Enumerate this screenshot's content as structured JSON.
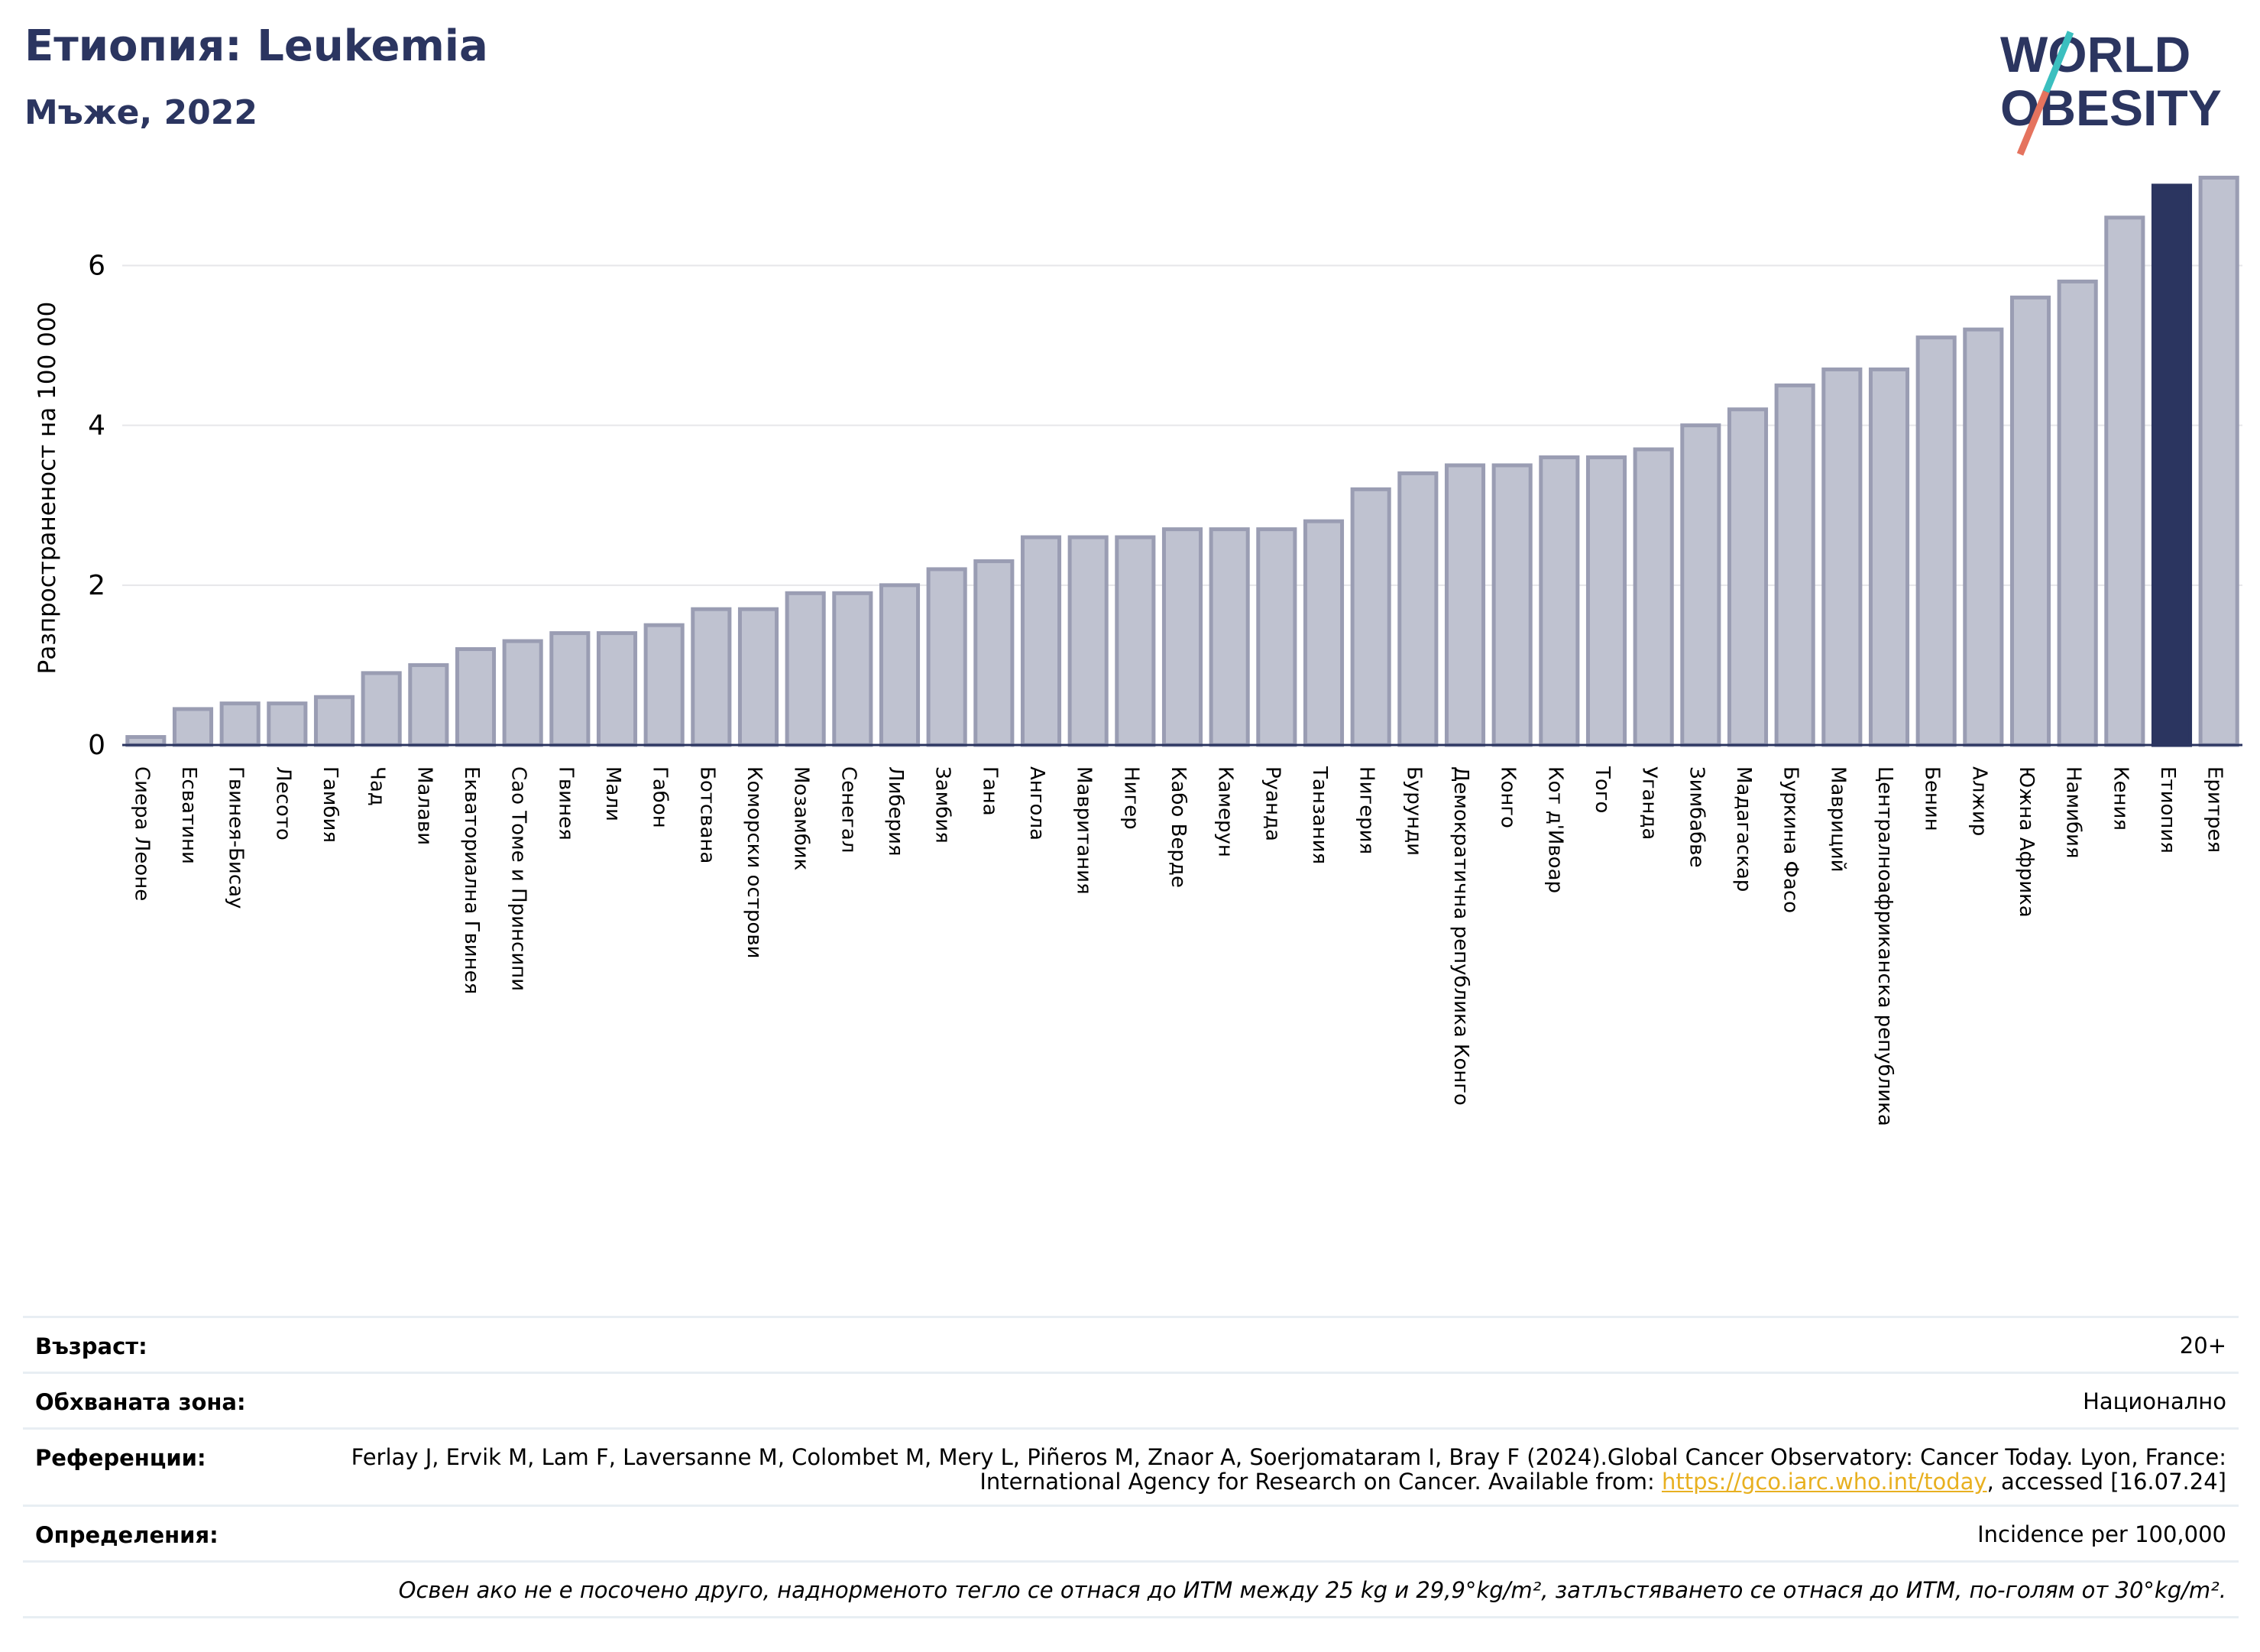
{
  "header": {
    "title": "Етиопия: Leukemia",
    "subtitle": "Мъже, 2022"
  },
  "logo": {
    "line1": "WORLD",
    "line2": "OBESITY",
    "colors": {
      "text": "#2b3560",
      "slash_teal": "#3bbfbf",
      "slash_coral": "#e5735e"
    }
  },
  "chart_data": {
    "type": "bar",
    "ylabel": "Разпространеност  на 100 000",
    "ylim": [
      0,
      7.2
    ],
    "yticks": [
      0,
      2,
      4,
      6
    ],
    "grid": true,
    "highlight": "Етиопия",
    "colors": {
      "bar": "#bfc2d0",
      "bar_edge": "#9a9db3",
      "highlight": "#2b3560",
      "grid": "#e6e6ea"
    },
    "categories": [
      "Сиера Леоне",
      "Есватини",
      "Гвинея-Бисау",
      "Лесото",
      "Гамбия",
      "Чад",
      "Малави",
      "Екваториална Гвинея",
      "Сао Томе и Принсипи",
      "Гвинея",
      "Мали",
      "Габон",
      "Ботсвана",
      "Коморски острови",
      "Мозамбик",
      "Сенегал",
      "Либерия",
      "Замбия",
      "Гана",
      "Ангола",
      "Мавритания",
      "Нигер",
      "Кабо Верде",
      "Камерун",
      "Руанда",
      "Танзания",
      "Нигерия",
      "Бурунди",
      "Демократична република Конго",
      "Конго",
      "Кот д'Ивоар",
      "Того",
      "Уганда",
      "Зимбабве",
      "Мадагаскар",
      "Буркина Фасо",
      "Мавриций",
      "Централноафриканска република",
      "Бенин",
      "Алжир",
      "Южна Африка",
      "Намибия",
      "Кения",
      "Етиопия",
      "Еритрея"
    ],
    "values": [
      0.1,
      0.45,
      0.52,
      0.52,
      0.6,
      0.9,
      1.0,
      1.2,
      1.3,
      1.4,
      1.4,
      1.5,
      1.7,
      1.7,
      1.9,
      1.9,
      2.0,
      2.2,
      2.3,
      2.6,
      2.6,
      2.6,
      2.7,
      2.7,
      2.7,
      2.8,
      3.2,
      3.4,
      3.5,
      3.5,
      3.6,
      3.6,
      3.7,
      4.0,
      4.2,
      4.5,
      4.7,
      4.7,
      5.1,
      5.2,
      5.6,
      5.8,
      6.6,
      7.0,
      7.1
    ]
  },
  "info": {
    "age": {
      "label": "Възраст:",
      "value": "20+"
    },
    "area": {
      "label": "Обхваната зона:",
      "value": "Национално"
    },
    "refs": {
      "label": "Референции:",
      "text1": "Ferlay J, Ervik M, Lam F, Laversanne M, Colombet M, Mery L, Piñeros M, Znaor A, Soerjomataram I, Bray F (2024).Global Cancer Observatory: Cancer Today. Lyon, France: International Agency for Research on Cancer. Available from: ",
      "link": "https://gco.iarc.who.int/today",
      "text2": ", accessed [16.07.24]"
    },
    "definitions": {
      "label": "Определения:",
      "value": "Incidence per 100,000"
    },
    "note": "Освен ако не е посочено друго, наднорменото тегло се отнася до ИТМ между 25 kg и 29,9°kg/m², затлъстяването се отнася до ИТМ, по-голям от 30°kg/m²."
  }
}
